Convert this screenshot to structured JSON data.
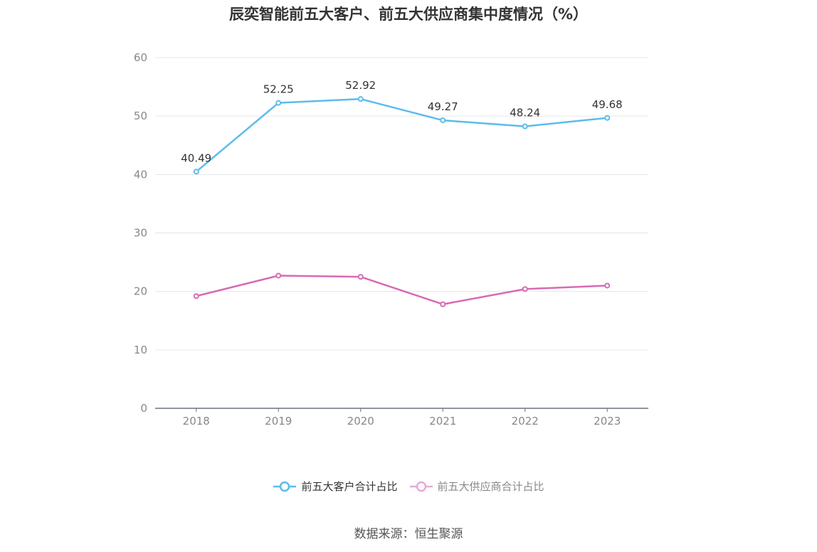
{
  "title": "辰奕智能前五大客户、前五大供应商集中度情况（%）",
  "source": "数据来源：恒生聚源",
  "colors": {
    "customers": "#5bbcec",
    "suppliers": "#d86ab5",
    "grid": "#e6e6e6",
    "axis": "#6b7280"
  },
  "chart_data": {
    "type": "line",
    "title": "辰奕智能前五大客户、前五大供应商集中度情况（%）",
    "x": [
      "2018",
      "2019",
      "2020",
      "2021",
      "2022",
      "2023"
    ],
    "ylim": [
      0,
      60
    ],
    "yticks": [
      0,
      10,
      20,
      30,
      40,
      50,
      60
    ],
    "grid": true,
    "legend_position": "bottom",
    "series": [
      {
        "name": "前五大客户合计占比",
        "values": [
          40.49,
          52.25,
          52.92,
          49.27,
          48.24,
          49.68
        ],
        "labels": [
          "40.49",
          "52.25",
          "52.92",
          "49.27",
          "48.24",
          "49.68"
        ]
      },
      {
        "name": "前五大供应商合计占比",
        "values": [
          19.2,
          22.7,
          22.5,
          17.8,
          20.4,
          21.0
        ]
      }
    ]
  }
}
